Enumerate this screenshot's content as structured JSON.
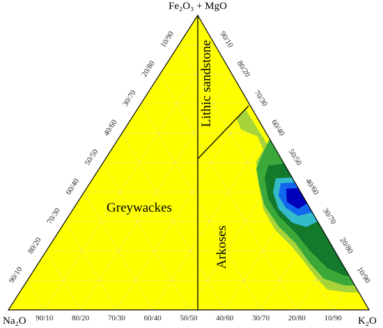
{
  "apex": {
    "top": "Fe₂O₃ + MgO",
    "left": "Na₂O",
    "right": "K₂O"
  },
  "left_ticks": [
    "10/90",
    "20/80",
    "30/70",
    "40/60",
    "50/50",
    "60/40",
    "70/30",
    "80/20",
    "90/10"
  ],
  "right_ticks": [
    "90/10",
    "80/20",
    "70/30",
    "60/40",
    "50/50",
    "40/60",
    "30/70",
    "20/80",
    "10/90"
  ],
  "bottom_ticks": [
    "90/10",
    "80/20",
    "70/30",
    "60/40",
    "50/50",
    "40/60",
    "30/70",
    "20/80",
    "10/90"
  ],
  "fields": {
    "lithic": "Lithic sandstone",
    "greywackes": "Greywackes",
    "arkoses": "Arkoses"
  }
}
